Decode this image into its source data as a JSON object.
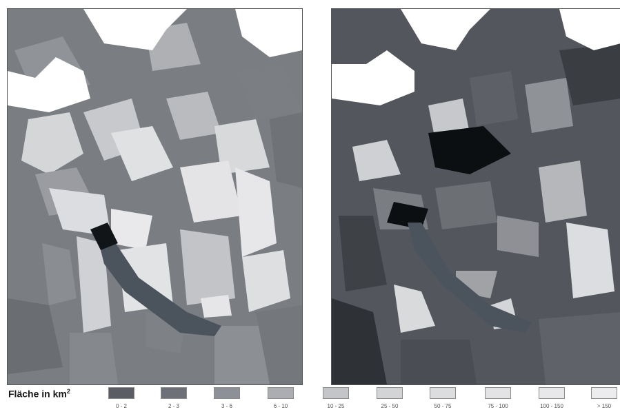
{
  "legend": {
    "title": "Fläche in km",
    "title_superscript": "2",
    "classes": [
      {
        "label": "0 - 2",
        "color": "#5a5d63"
      },
      {
        "label": "2 - 3",
        "color": "#6d7076"
      },
      {
        "label": "3 - 6",
        "color": "#8d9096"
      },
      {
        "label": "6 - 10",
        "color": "#abadb2"
      },
      {
        "label": "10 - 25",
        "color": "#c3c5c8"
      },
      {
        "label": "25 - 50",
        "color": "#d3d4d6"
      },
      {
        "label": "50 - 75",
        "color": "#dcdddf"
      },
      {
        "label": "75 - 100",
        "color": "#e3e3e5"
      },
      {
        "label": "100 - 150",
        "color": "#e8e8ea"
      },
      {
        "label": "> 150",
        "color": "#ececee"
      }
    ]
  },
  "colors": {
    "lake": "#4b545d",
    "outside": "#ffffff",
    "dense": "#0c0f12"
  }
}
